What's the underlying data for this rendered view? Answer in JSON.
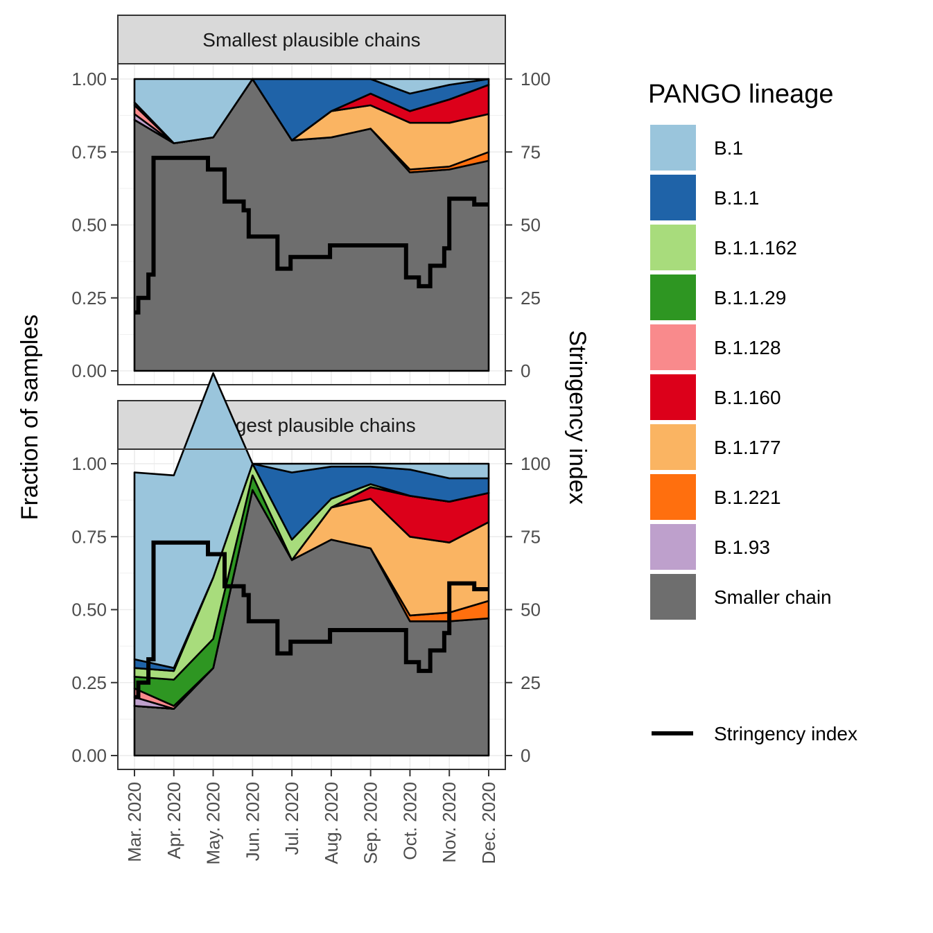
{
  "chart_data": {
    "type": "area",
    "ylabel": "Fraction of samples",
    "y2label": "Stringency index",
    "ylim": [
      0,
      1
    ],
    "y2lim": [
      0,
      100
    ],
    "y_ticks": [
      "0.00",
      "0.25",
      "0.50",
      "0.75",
      "1.00"
    ],
    "y2_ticks": [
      "0",
      "25",
      "50",
      "75",
      "100"
    ],
    "x": [
      "2020-03",
      "2020-04",
      "2020-05",
      "2020-06",
      "2020-07",
      "2020-08",
      "2020-09",
      "2020-10",
      "2020-11",
      "2020-12"
    ],
    "x_tick_labels": [
      "Mar. 2020",
      "Apr. 2020",
      "May. 2020",
      "Jun. 2020",
      "Jul. 2020",
      "Aug. 2020",
      "Sep. 2020",
      "Oct. 2020",
      "Nov. 2020",
      "Dec. 2020"
    ],
    "legend": {
      "title": "PANGO lineage",
      "placement": "right",
      "entries": [
        {
          "key": "B.1",
          "label": "B.1",
          "color": "#9ac5dc"
        },
        {
          "key": "B.1.1",
          "label": "B.1.1",
          "color": "#1f63a8"
        },
        {
          "key": "B.1.1.162",
          "label": "B.1.1.162",
          "color": "#a8dc7c"
        },
        {
          "key": "B.1.1.29",
          "label": "B.1.1.29",
          "color": "#2e9622"
        },
        {
          "key": "B.1.128",
          "label": "B.1.128",
          "color": "#f98a8c"
        },
        {
          "key": "B.1.160",
          "label": "B.1.160",
          "color": "#dc001a"
        },
        {
          "key": "B.1.177",
          "label": "B.1.177",
          "color": "#fab462"
        },
        {
          "key": "B.1.221",
          "label": "B.1.221",
          "color": "#ff6f0e"
        },
        {
          "key": "B.1.93",
          "label": "B.1.93",
          "color": "#bea0cc"
        },
        {
          "key": "Smaller chain",
          "label": "Smaller chain",
          "color": "#6e6e6e"
        }
      ],
      "line_entry": {
        "label": "Stringency index",
        "color": "#000000"
      }
    },
    "stringency_index": [
      {
        "x": "2020-03-01",
        "y": 20
      },
      {
        "x": "2020-03-04",
        "y": 25
      },
      {
        "x": "2020-03-12",
        "y": 33
      },
      {
        "x": "2020-03-16",
        "y": 73
      },
      {
        "x": "2020-04-27",
        "y": 69
      },
      {
        "x": "2020-05-10",
        "y": 58
      },
      {
        "x": "2020-05-25",
        "y": 55
      },
      {
        "x": "2020-05-29",
        "y": 46
      },
      {
        "x": "2020-06-20",
        "y": 35
      },
      {
        "x": "2020-06-30",
        "y": 39
      },
      {
        "x": "2020-07-31",
        "y": 43
      },
      {
        "x": "2020-09-28",
        "y": 32
      },
      {
        "x": "2020-10-08",
        "y": 29
      },
      {
        "x": "2020-10-17",
        "y": 36
      },
      {
        "x": "2020-10-28",
        "y": 42
      },
      {
        "x": "2020-11-01",
        "y": 59
      },
      {
        "x": "2020-11-20",
        "y": 57
      },
      {
        "x": "2020-12-01",
        "y": 57
      }
    ],
    "panels": [
      {
        "title": "Smallest plausible chains",
        "series": [
          {
            "name": "Smaller chain",
            "values": [
              0.86,
              0.78,
              0.8,
              1.0,
              0.79,
              0.8,
              0.83,
              0.68,
              0.69,
              0.72
            ]
          },
          {
            "name": "B.1.221",
            "values": [
              0.0,
              0.0,
              0.0,
              0.0,
              0.0,
              0.0,
              0.0,
              0.01,
              0.01,
              0.03
            ]
          },
          {
            "name": "B.1.177",
            "values": [
              0.0,
              0.0,
              0.0,
              0.0,
              0.0,
              0.09,
              0.08,
              0.16,
              0.15,
              0.13
            ]
          },
          {
            "name": "B.1.160",
            "values": [
              0.0,
              0.0,
              0.0,
              0.0,
              0.0,
              0.0,
              0.04,
              0.04,
              0.08,
              0.1
            ]
          },
          {
            "name": "B.1.93",
            "values": [
              0.02,
              0.0,
              0.0,
              0.0,
              0.0,
              0.0,
              0.0,
              0.0,
              0.0,
              0.0
            ]
          },
          {
            "name": "B.1.128",
            "values": [
              0.03,
              0.0,
              0.0,
              0.0,
              0.0,
              0.0,
              0.0,
              0.0,
              0.0,
              0.0
            ]
          },
          {
            "name": "B.1.1",
            "values": [
              0.01,
              0.0,
              0.0,
              0.0,
              0.21,
              0.11,
              0.05,
              0.06,
              0.05,
              0.02
            ]
          },
          {
            "name": "B.1",
            "values": [
              0.08,
              0.22,
              0.2,
              0.0,
              0.0,
              0.0,
              0.0,
              0.05,
              0.02,
              0.0
            ]
          }
        ]
      },
      {
        "title": "Largest plausible chains",
        "series": [
          {
            "name": "Smaller chain",
            "values": [
              0.17,
              0.16,
              0.3,
              0.91,
              0.67,
              0.74,
              0.71,
              0.46,
              0.46,
              0.47
            ]
          },
          {
            "name": "B.1.221",
            "values": [
              0.0,
              0.0,
              0.0,
              0.0,
              0.0,
              0.0,
              0.0,
              0.02,
              0.03,
              0.06
            ]
          },
          {
            "name": "B.1.177",
            "values": [
              0.0,
              0.0,
              0.0,
              0.0,
              0.0,
              0.11,
              0.17,
              0.27,
              0.24,
              0.27
            ]
          },
          {
            "name": "B.1.160",
            "values": [
              0.0,
              0.0,
              0.0,
              0.0,
              0.0,
              0.0,
              0.04,
              0.14,
              0.14,
              0.1
            ]
          },
          {
            "name": "B.1.93",
            "values": [
              0.03,
              0.0,
              0.0,
              0.0,
              0.0,
              0.0,
              0.0,
              0.0,
              0.0,
              0.0
            ]
          },
          {
            "name": "B.1.128",
            "values": [
              0.03,
              0.01,
              0.0,
              0.0,
              0.0,
              0.0,
              0.0,
              0.0,
              0.0,
              0.0
            ]
          },
          {
            "name": "B.1.1.29",
            "values": [
              0.04,
              0.09,
              0.1,
              0.05,
              0.0,
              0.0,
              0.0,
              0.0,
              0.0,
              0.0
            ]
          },
          {
            "name": "B.1.1.162",
            "values": [
              0.03,
              0.03,
              0.21,
              0.04,
              0.07,
              0.03,
              0.01,
              0.0,
              0.0,
              0.0
            ]
          },
          {
            "name": "B.1.1",
            "values": [
              0.03,
              0.01,
              0.0,
              0.0,
              0.23,
              0.11,
              0.06,
              0.09,
              0.08,
              0.05
            ]
          },
          {
            "name": "B.1",
            "values": [
              0.64,
              0.66,
              0.7,
              0.0,
              0.03,
              0.01,
              0.01,
              0.02,
              0.05,
              0.05
            ]
          }
        ]
      }
    ]
  }
}
